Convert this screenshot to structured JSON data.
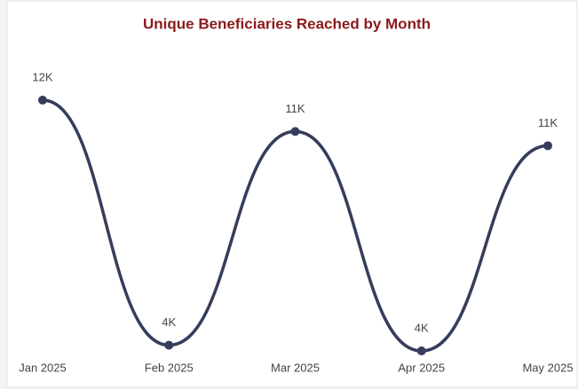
{
  "chart_data": {
    "type": "line",
    "title": "Unique Beneficiaries Reached by Month",
    "categories": [
      "Jan 2025",
      "Feb 2025",
      "Mar 2025",
      "Apr 2025",
      "May 2025"
    ],
    "series": [
      {
        "name": "Unique Beneficiaries",
        "color": "#363c5c",
        "values": [
          12400,
          3800,
          11300,
          3600,
          10800
        ],
        "value_labels": [
          "12K",
          "4K",
          "11K",
          "4K",
          "11K"
        ]
      }
    ],
    "smooth": true
  }
}
